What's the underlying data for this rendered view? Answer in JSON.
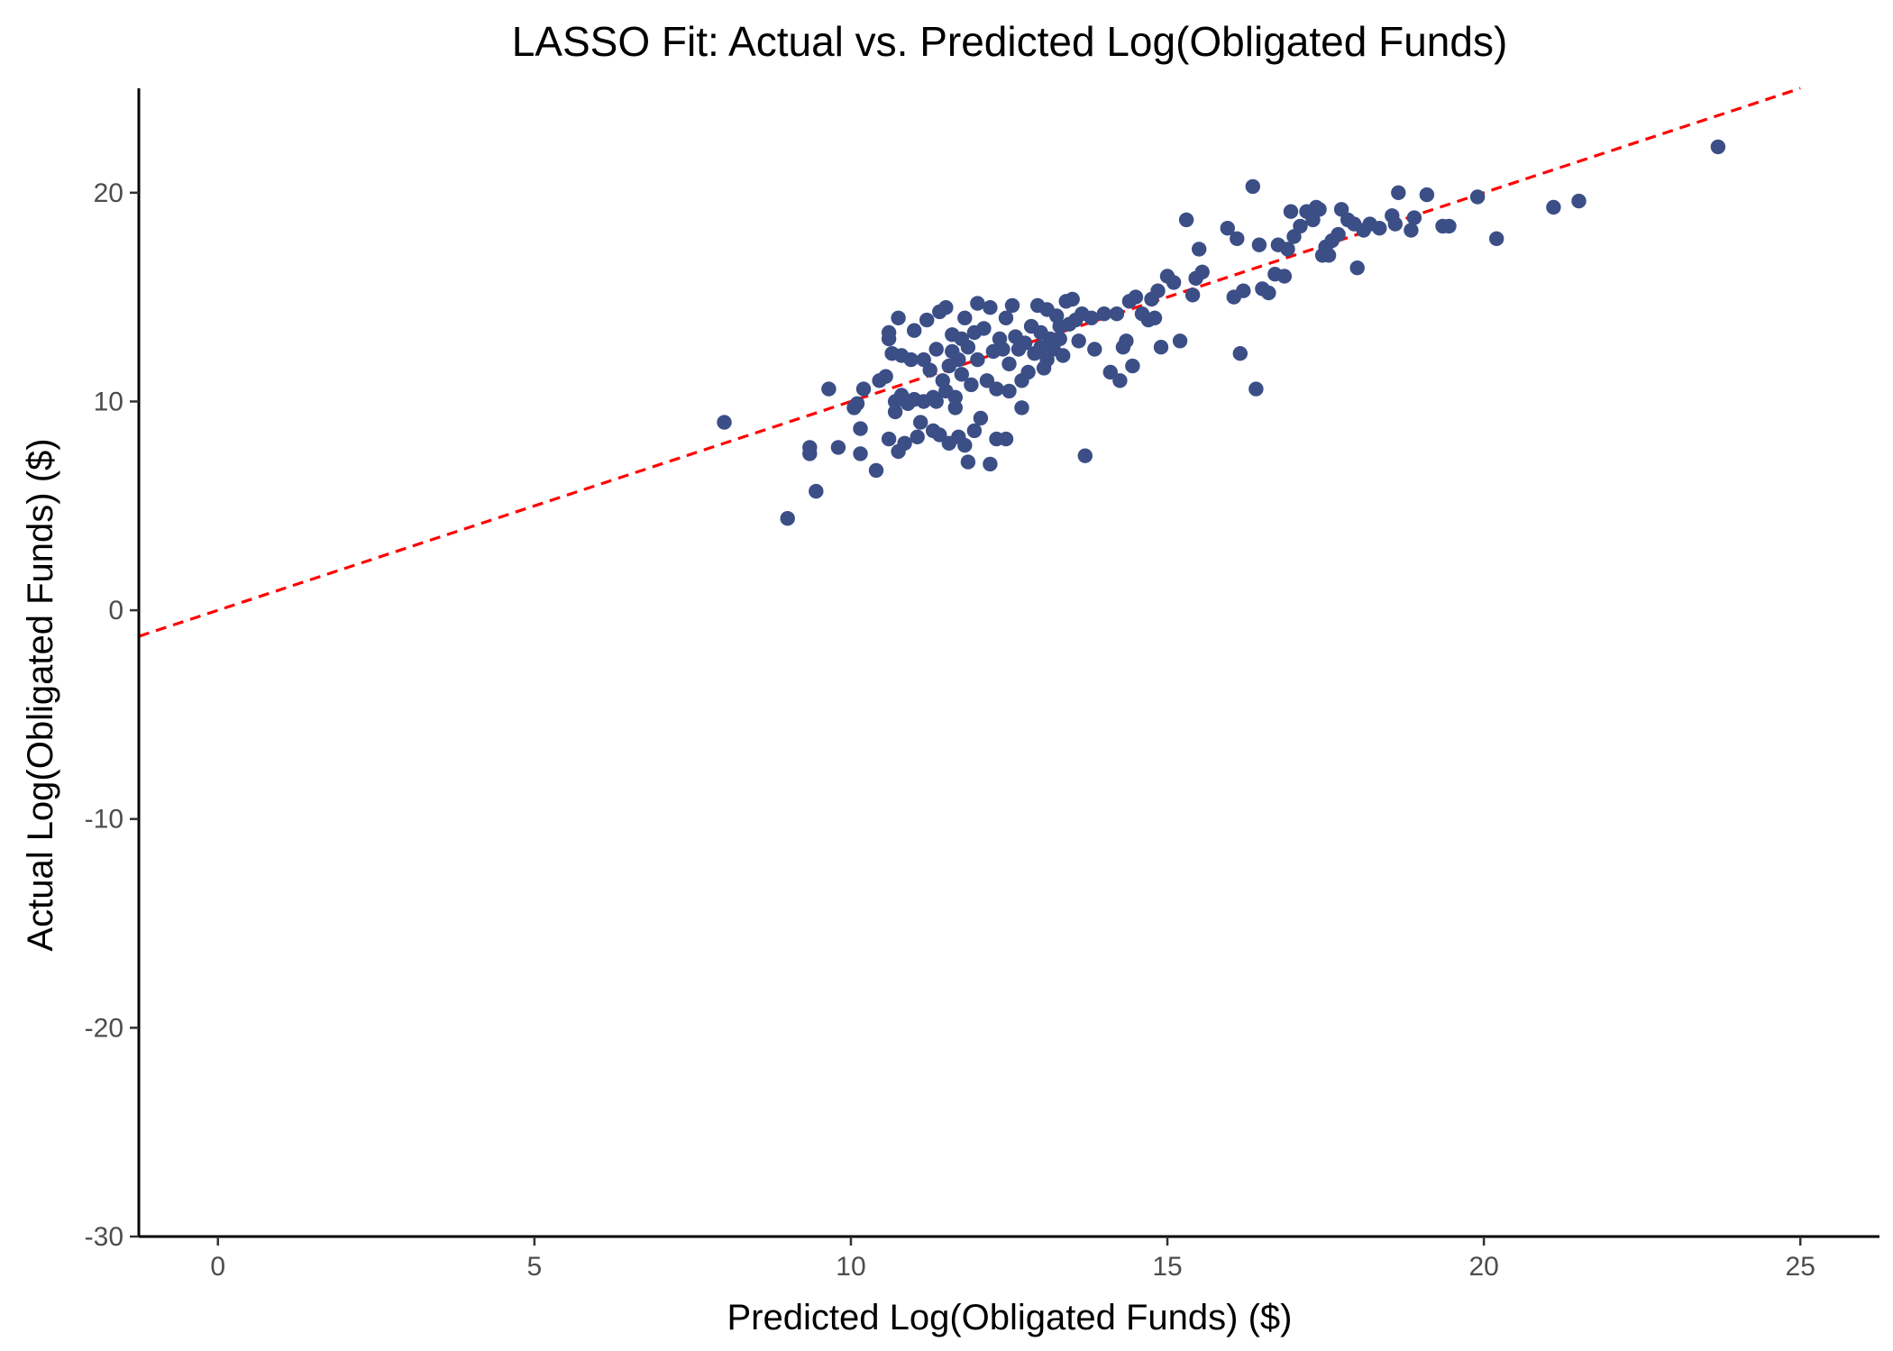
{
  "chart_data": {
    "type": "scatter",
    "title": "LASSO Fit: Actual vs. Predicted Log(Obligated Funds)",
    "xlabel": "Predicted Log(Obligated Funds) ($)",
    "ylabel": "Actual Log(Obligated Funds) ($)",
    "xlim": [
      -1.25,
      26.25
    ],
    "ylim": [
      -30,
      25
    ],
    "x_ticks": [
      0,
      5,
      10,
      15,
      20,
      25
    ],
    "y_ticks": [
      -30,
      -20,
      -10,
      0,
      10,
      20
    ],
    "grid": false,
    "reference_line": {
      "slope": 1,
      "intercept": 0,
      "style": "dashed",
      "color": "#ff0000"
    },
    "point_color": "#3b4e86",
    "points": [
      [
        8.0,
        9.0
      ],
      [
        9.0,
        4.4
      ],
      [
        9.35,
        7.8
      ],
      [
        9.35,
        7.5
      ],
      [
        9.45,
        5.7
      ],
      [
        9.65,
        10.6
      ],
      [
        9.8,
        7.8
      ],
      [
        10.05,
        9.7
      ],
      [
        10.1,
        9.9
      ],
      [
        10.15,
        8.7
      ],
      [
        10.15,
        7.5
      ],
      [
        10.2,
        10.6
      ],
      [
        10.4,
        6.7
      ],
      [
        10.45,
        11.0
      ],
      [
        10.55,
        11.2
      ],
      [
        10.6,
        13.3
      ],
      [
        10.6,
        13.0
      ],
      [
        10.6,
        8.2
      ],
      [
        10.65,
        12.3
      ],
      [
        10.7,
        10.0
      ],
      [
        10.7,
        9.5
      ],
      [
        10.75,
        14.0
      ],
      [
        10.75,
        7.6
      ],
      [
        10.8,
        12.2
      ],
      [
        10.8,
        10.3
      ],
      [
        10.85,
        8.0
      ],
      [
        10.9,
        9.9
      ],
      [
        10.95,
        12.0
      ],
      [
        11.0,
        13.4
      ],
      [
        11.0,
        10.1
      ],
      [
        11.05,
        8.3
      ],
      [
        11.1,
        9.0
      ],
      [
        11.15,
        12.0
      ],
      [
        11.15,
        10.0
      ],
      [
        11.2,
        13.9
      ],
      [
        11.25,
        11.5
      ],
      [
        11.3,
        10.2
      ],
      [
        11.3,
        8.6
      ],
      [
        11.35,
        12.5
      ],
      [
        11.35,
        10.0
      ],
      [
        11.4,
        14.3
      ],
      [
        11.4,
        8.4
      ],
      [
        11.45,
        11.0
      ],
      [
        11.5,
        14.5
      ],
      [
        11.5,
        10.5
      ],
      [
        11.55,
        8.0
      ],
      [
        11.6,
        13.2
      ],
      [
        11.6,
        12.4
      ],
      [
        11.65,
        10.2
      ],
      [
        11.65,
        9.7
      ],
      [
        11.7,
        12.0
      ],
      [
        11.7,
        8.3
      ],
      [
        11.75,
        13.0
      ],
      [
        11.75,
        11.3
      ],
      [
        11.8,
        14.0
      ],
      [
        11.8,
        7.9
      ],
      [
        11.85,
        12.6
      ],
      [
        11.9,
        10.8
      ],
      [
        11.95,
        13.3
      ],
      [
        11.95,
        8.6
      ],
      [
        11.55,
        11.7
      ],
      [
        11.85,
        7.1
      ],
      [
        12.0,
        14.7
      ],
      [
        12.0,
        12.0
      ],
      [
        12.05,
        9.2
      ],
      [
        12.1,
        13.5
      ],
      [
        12.15,
        11.0
      ],
      [
        12.2,
        7.0
      ],
      [
        12.2,
        14.5
      ],
      [
        12.25,
        12.4
      ],
      [
        12.3,
        10.6
      ],
      [
        12.3,
        8.2
      ],
      [
        12.35,
        13.0
      ],
      [
        12.4,
        12.5
      ],
      [
        12.45,
        14.0
      ],
      [
        12.45,
        8.2
      ],
      [
        12.5,
        11.8
      ],
      [
        12.5,
        10.5
      ],
      [
        12.55,
        14.6
      ],
      [
        12.6,
        13.1
      ],
      [
        12.65,
        12.5
      ],
      [
        12.7,
        11.0
      ],
      [
        12.7,
        9.7
      ],
      [
        12.75,
        12.8
      ],
      [
        12.8,
        11.4
      ],
      [
        12.85,
        13.6
      ],
      [
        12.9,
        12.3
      ],
      [
        12.95,
        14.6
      ],
      [
        13.0,
        13.3
      ],
      [
        13.0,
        12.6
      ],
      [
        13.05,
        11.6
      ],
      [
        13.1,
        14.4
      ],
      [
        13.15,
        13.0
      ],
      [
        13.2,
        12.5
      ],
      [
        13.25,
        14.1
      ],
      [
        13.3,
        13.6
      ],
      [
        13.35,
        12.2
      ],
      [
        13.4,
        14.8
      ],
      [
        13.45,
        13.7
      ],
      [
        13.5,
        14.9
      ],
      [
        13.55,
        13.9
      ],
      [
        13.6,
        12.9
      ],
      [
        13.65,
        14.2
      ],
      [
        13.7,
        7.4
      ],
      [
        13.3,
        13.0
      ],
      [
        13.1,
        12.0
      ],
      [
        13.8,
        14.0
      ],
      [
        13.85,
        12.5
      ],
      [
        14.0,
        14.2
      ],
      [
        14.1,
        11.4
      ],
      [
        14.2,
        14.2
      ],
      [
        14.25,
        11.0
      ],
      [
        14.3,
        12.6
      ],
      [
        14.35,
        12.9
      ],
      [
        14.4,
        14.8
      ],
      [
        14.45,
        11.7
      ],
      [
        14.5,
        15.0
      ],
      [
        14.6,
        14.2
      ],
      [
        14.7,
        13.9
      ],
      [
        14.75,
        14.9
      ],
      [
        14.8,
        14.0
      ],
      [
        14.85,
        15.3
      ],
      [
        14.9,
        12.6
      ],
      [
        15.0,
        16.0
      ],
      [
        15.1,
        15.7
      ],
      [
        15.2,
        12.9
      ],
      [
        15.3,
        18.7
      ],
      [
        15.4,
        15.1
      ],
      [
        15.45,
        15.9
      ],
      [
        15.5,
        17.3
      ],
      [
        15.55,
        16.2
      ],
      [
        15.95,
        18.3
      ],
      [
        16.05,
        15.0
      ],
      [
        16.1,
        17.8
      ],
      [
        16.15,
        12.3
      ],
      [
        16.2,
        15.3
      ],
      [
        16.35,
        20.3
      ],
      [
        16.4,
        10.6
      ],
      [
        16.45,
        17.5
      ],
      [
        16.5,
        15.4
      ],
      [
        16.6,
        15.2
      ],
      [
        16.7,
        16.1
      ],
      [
        16.75,
        17.5
      ],
      [
        16.85,
        16.0
      ],
      [
        16.9,
        17.3
      ],
      [
        16.95,
        19.1
      ],
      [
        17.0,
        17.9
      ],
      [
        17.1,
        18.4
      ],
      [
        17.2,
        19.1
      ],
      [
        17.3,
        18.7
      ],
      [
        17.35,
        19.3
      ],
      [
        17.4,
        19.2
      ],
      [
        17.45,
        17.0
      ],
      [
        17.5,
        17.4
      ],
      [
        17.55,
        17.0
      ],
      [
        17.6,
        17.7
      ],
      [
        17.7,
        18.0
      ],
      [
        17.75,
        19.2
      ],
      [
        17.85,
        18.7
      ],
      [
        17.95,
        18.5
      ],
      [
        18.0,
        16.4
      ],
      [
        18.1,
        18.2
      ],
      [
        18.2,
        18.5
      ],
      [
        18.35,
        18.3
      ],
      [
        18.55,
        18.9
      ],
      [
        18.6,
        18.5
      ],
      [
        18.65,
        20.0
      ],
      [
        18.85,
        18.2
      ],
      [
        18.9,
        18.8
      ],
      [
        19.1,
        19.9
      ],
      [
        19.35,
        18.4
      ],
      [
        19.45,
        18.4
      ],
      [
        19.9,
        19.8
      ],
      [
        20.2,
        17.8
      ],
      [
        21.1,
        19.3
      ],
      [
        21.5,
        19.6
      ],
      [
        23.7,
        22.2
      ]
    ]
  }
}
